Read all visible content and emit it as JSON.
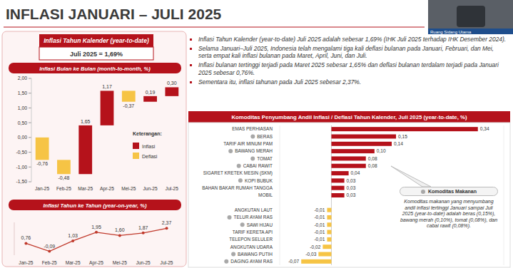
{
  "title": "INFLASI JANUARI – JULI 2025",
  "video_label": "Ruang Sidang Utama",
  "ytd_box": {
    "title": "Inflasi Tahun Kalender (year-to-date)",
    "value": "Juli 2025 = 1,69%"
  },
  "bullets": [
    "Inflasi Tahun Kalender (year-to-date) Juli 2025 adalah sebesar 1,69% (IHK Juli 2025 terhadap IHK Desember 2024).",
    "Selama Januari–Juli 2025, Indonesia telah mengalami tiga kali deflasi bulanan pada Januari, Februari, dan Mei, serta empat kali inflasi bulanan pada Maret, April, Juni, dan Juli.",
    "Inflasi bulanan tertinggi terjadi pada Maret 2025 sebesar 1,65% dan deflasi bulanan terdalam terjadi pada Januari 2025 sebesar 0,76%.",
    "Sementara itu, inflasi tahunan pada Juli 2025 sebesar 2,37%."
  ],
  "callout": {
    "title": "Komoditas Makanan",
    "text": "Komoditas makanan yang menyumbang andil inflasi tertinggi Januari sampai Juli 2025 (year-to-date) adalah beras (0,15%), bawang merah (0,10%), tomat (0,08%), dan cabai rawit (0,08%).",
    "members": [
      "BERAS",
      "BAWANG MERAH",
      "TOMAT",
      "CABAI RAWIT",
      "KOPI BUBUK",
      "TELUR AYAM RAS",
      "SAWI HIJAU",
      "BAWANG PUTIH",
      "DAGING AYAM RAS"
    ]
  },
  "chart_data": [
    {
      "type": "waterfall",
      "title": "Inflasi Bulan ke Bulan (month-to-month, %)",
      "categories": [
        "Jan-25",
        "Feb-25",
        "Mar-25",
        "Apr-25",
        "Mei-25",
        "Jun-25",
        "Jul-25"
      ],
      "series": [
        {
          "name": "Inflasi",
          "color": "#b5121b",
          "values": [
            null,
            null,
            1.65,
            1.17,
            null,
            0.19,
            0.3
          ],
          "value_labels": [
            null,
            null,
            "1,65",
            "1,17",
            null,
            "0,19",
            "0,30"
          ]
        },
        {
          "name": "Deflasi",
          "color": "#f6c445",
          "values": [
            -0.76,
            -0.48,
            null,
            null,
            -0.37,
            null,
            null
          ],
          "value_labels": [
            "-0,76",
            "-0,48",
            null,
            null,
            "-0,37",
            null,
            null
          ]
        }
      ],
      "ylim": [
        -1.5,
        2
      ],
      "yticks": [
        {
          "value": 2,
          "label": "2,00"
        },
        {
          "value": 1.5,
          "label": "1,50"
        },
        {
          "value": 1,
          "label": "1,00"
        },
        {
          "value": 0.5,
          "label": "0,50"
        },
        {
          "value": 0,
          "label": "0,00"
        },
        {
          "value": -0.5,
          "label": "-0,50"
        },
        {
          "value": -1,
          "label": "-1,00"
        },
        {
          "value": -1.5,
          "label": "-1,50"
        }
      ],
      "data_labels": true,
      "legend": "right",
      "legend_title": "Keterangan:"
    },
    {
      "type": "line",
      "title": "Inflasi Tahun ke Tahun (year-on-year, %)",
      "categories": [
        "Jan-25",
        "Feb-25",
        "Mar-25",
        "Apr-25",
        "Mei-25",
        "Jun-25",
        "Jul-25"
      ],
      "values": [
        0.76,
        -0.09,
        1.03,
        1.95,
        1.6,
        1.87,
        2.37
      ],
      "value_labels": [
        "0,76",
        "-0,09",
        "1,03",
        "1,95",
        "1,60",
        "1,87",
        "2,37"
      ],
      "color": "#c0392b",
      "marker": "circle",
      "ylim": [
        -0.5,
        3
      ],
      "data_labels": true,
      "tick_labels": "x"
    },
    {
      "type": "bar",
      "orientation": "horizontal",
      "title": "Komoditas Penyumbang Andil Inflasi / Deflasi Tahun Kalender, Juli 2025 (year-to-date, %)",
      "categories": [
        "EMAS PERHIASAN",
        "BERAS",
        "TARIF AIR MINUM PAM",
        "BAWANG MERAH",
        "TOMAT",
        "CABAI RAWIT",
        "SIGARET KRETEK MESIN (SKM)",
        "KOPI BUBUK",
        "BAHAN BAKAR RUMAH TANGGA",
        "MOBIL",
        null,
        "ANGKUTAN LAUT",
        "TELUR AYAM RAS",
        "SAWI HIJAU",
        "TARIF KERETA API",
        "TELEPON SELULER",
        "ANGKUTAN UDARA",
        "BAWANG PUTIH",
        "DAGING AYAM RAS"
      ],
      "values": [
        0.34,
        0.15,
        0.14,
        0.1,
        0.08,
        0.08,
        0.04,
        0.03,
        0.03,
        0.03,
        null,
        -0.01,
        -0.01,
        -0.01,
        -0.01,
        -0.01,
        -0.02,
        -0.03,
        -0.07
      ],
      "value_labels": [
        "0,34",
        "0,15",
        "0,14",
        "0,10",
        "0,08",
        "0,08",
        "0,04",
        "0,03",
        "0,03",
        "0,03",
        null,
        "-0,01",
        "-0,01",
        "-0,01",
        "-0,01",
        "-0,01",
        "-0,02",
        "-0,03",
        "-0,07"
      ],
      "colors": [
        "#b5121b",
        "#b5121b",
        "#b5121b",
        "#b5121b",
        "#b5121b",
        "#b5121b",
        "#b5121b",
        "#b5121b",
        "#b5121b",
        "#b5121b",
        null,
        "#f6c445",
        "#f6c445",
        "#f6c445",
        "#f6c445",
        "#f6c445",
        "#f6c445",
        "#f6c445",
        "#f6c445"
      ],
      "xlim": [
        -0.12,
        0.4
      ],
      "data_labels": true,
      "tick_labels": "y"
    }
  ]
}
